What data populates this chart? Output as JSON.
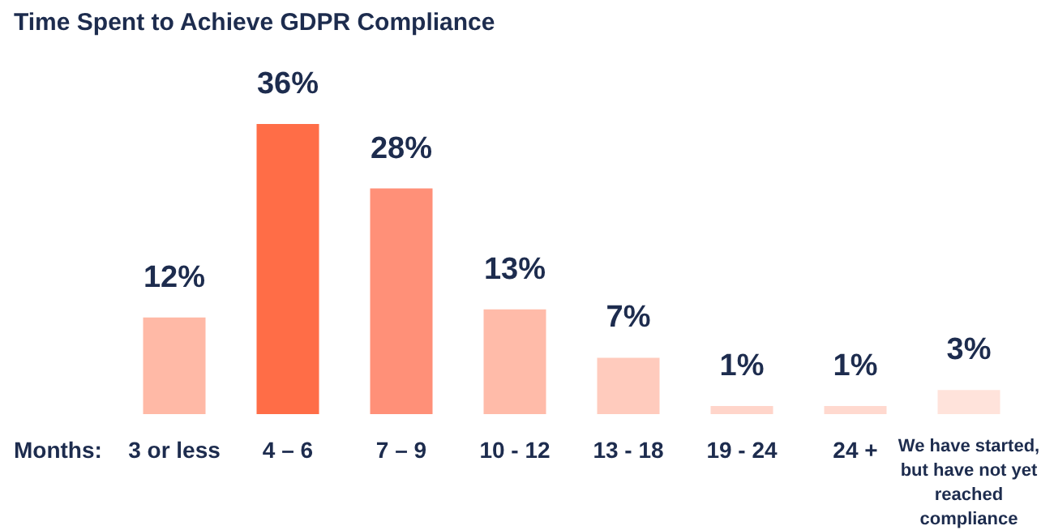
{
  "chart_data": {
    "type": "bar",
    "title": "Time Spent to Achieve GDPR Compliance",
    "xlabel": "Months:",
    "categories": [
      "3 or less",
      "4 – 6",
      "7 – 9",
      "10 - 12",
      "13 - 18",
      "19 - 24",
      "24 +",
      "We have started, but have not yet reached compliance"
    ],
    "values": [
      12,
      36,
      28,
      13,
      7,
      1,
      1,
      3
    ],
    "colors": [
      "#ffb9a6",
      "#ff6d47",
      "#ff9078",
      "#ffbba9",
      "#ffcbbd",
      "#ffd5ca",
      "#ffd9cf",
      "#ffe3db"
    ],
    "value_labels": [
      "12%",
      "36%",
      "28%",
      "13%",
      "7%",
      "1%",
      "1%",
      "3%"
    ]
  }
}
